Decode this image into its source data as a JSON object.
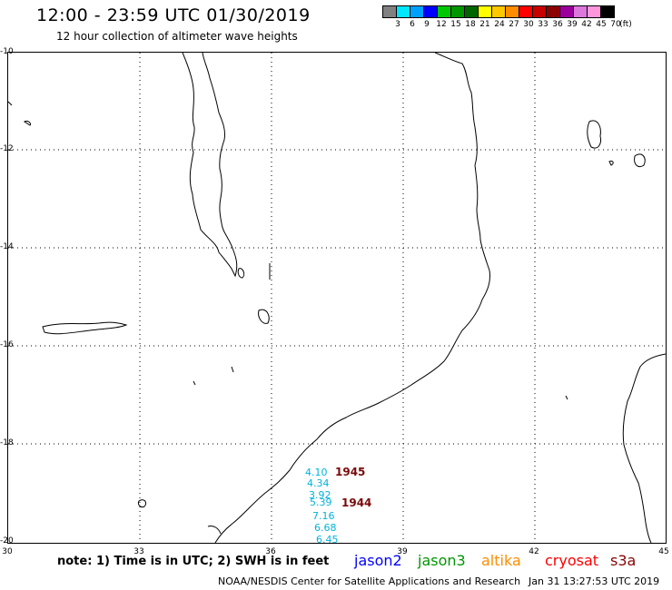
{
  "header": {
    "title": "12:00 - 23:59 UTC 01/30/2019",
    "subtitle": "12 hour collection of altimeter wave heights"
  },
  "legend": {
    "colors": [
      "#808080",
      "#00e6ff",
      "#00a0ff",
      "#0000ff",
      "#00c800",
      "#009600",
      "#006400",
      "#ffff00",
      "#ffc800",
      "#ff8c00",
      "#ff0000",
      "#c80000",
      "#8b0000",
      "#9c009c",
      "#dc78dc",
      "#ff96dc",
      "#000000"
    ],
    "ticks": [
      "3",
      "6",
      "9",
      "12",
      "15",
      "18",
      "21",
      "24",
      "27",
      "30",
      "33",
      "36",
      "39",
      "42",
      "45",
      "70",
      "(ft)"
    ]
  },
  "map": {
    "lat_labels": [
      "-10",
      "-12",
      "-14",
      "-16",
      "-18",
      "-20"
    ],
    "lon_labels": [
      "30",
      "33",
      "36",
      "39",
      "42",
      "45"
    ]
  },
  "observations": {
    "track_a_values": [
      "4.10",
      "4.34",
      "3.92",
      "5.39",
      "7.16",
      "6.68",
      "6.45"
    ],
    "track_a_color": "#00b4dc",
    "time_tags": [
      "1945",
      "1944"
    ],
    "time_tag_color": "#7a0a0a"
  },
  "footer": {
    "note": "note: 1) Time is in UTC; 2) SWH is in feet",
    "satellites": [
      {
        "name": "jason2",
        "color": "#0000ff"
      },
      {
        "name": "jason3",
        "color": "#009600"
      },
      {
        "name": "altika",
        "color": "#ff8c00"
      },
      {
        "name": "cryosat",
        "color": "#ff0000"
      },
      {
        "name": "s3a",
        "color": "#8b0000"
      }
    ],
    "credit": "NOAA/NESDIS Center for Satellite Applications and Research",
    "timestamp": "Jan 31 13:27:53 UTC 2019"
  }
}
